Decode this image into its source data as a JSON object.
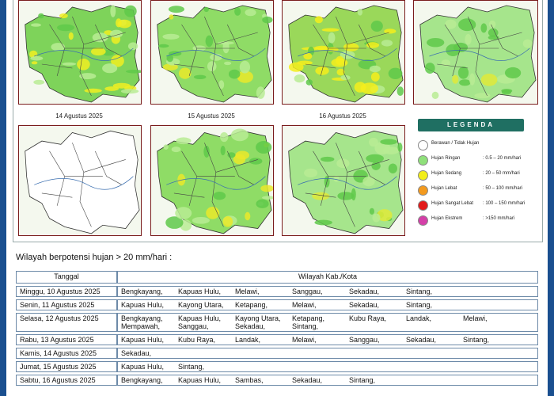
{
  "maps": [
    {
      "date": "",
      "variant": "heavy"
    },
    {
      "date": "",
      "variant": "medium"
    },
    {
      "date": "",
      "variant": "heavy-yellow"
    },
    {
      "date": "",
      "variant": "medium-light"
    },
    {
      "date": "14 Agustus 2025",
      "variant": "empty"
    },
    {
      "date": "15 Agustus 2025",
      "variant": "medium"
    },
    {
      "date": "16 Agustus 2025",
      "variant": "medium-light"
    }
  ],
  "legend": {
    "title": "LEGENDA",
    "items": [
      {
        "name": "Berawan / Tidak Hujan",
        "range": "",
        "color": "#ffffff"
      },
      {
        "name": "Hujan Ringan",
        "range": ": 0.5 – 20 mm/hari",
        "color": "#8fe07a"
      },
      {
        "name": "Hujan Sedang",
        "range": ": 20 – 50 mm/hari",
        "color": "#f2ee1a"
      },
      {
        "name": "Hujan Lebat",
        "range": ": 50 – 100 mm/hari",
        "color": "#f39a1e"
      },
      {
        "name": "Hujan Sangat Lebat",
        "range": ": 100 – 150 mm/hari",
        "color": "#e21a1a"
      },
      {
        "name": "Hujan Ekstrem",
        "range": ": >150 mm/hari",
        "color": "#d43fa8"
      }
    ]
  },
  "caption": "Wilayah berpotensi hujan > 20 mm/hari :",
  "table": {
    "headers": [
      "Tanggal",
      "Wilayah Kab./Kota"
    ],
    "rows": [
      {
        "date": "Minggu, 10 Agustus 2025",
        "areas": [
          "Bengkayang,",
          "Kapuas Hulu,",
          "Melawi,",
          "Sanggau,",
          "Sekadau,",
          "Sintang,"
        ]
      },
      {
        "date": "Senin, 11 Agustus 2025",
        "areas": [
          "Kapuas Hulu,",
          "Kayong Utara,",
          "Ketapang,",
          "Melawi,",
          "Sekadau,",
          "Sintang,"
        ]
      },
      {
        "date": "Selasa, 12 Agustus 2025",
        "areas": [
          "Bengkayang,",
          "Kapuas Hulu,",
          "Kayong Utara,",
          "Ketapang,",
          "Kubu Raya,",
          "Landak,",
          "Melawi,",
          "Mempawah,",
          "Sanggau,",
          "Sekadau,",
          "Sintang,"
        ]
      },
      {
        "date": "Rabu, 13 Agustus 2025",
        "areas": [
          "Kapuas Hulu,",
          "Kubu Raya,",
          "Landak,",
          "Melawi,",
          "Sanggau,",
          "Sekadau,",
          "Sintang,"
        ]
      },
      {
        "date": "Kamis, 14 Agustus 2025",
        "areas": [
          "Sekadau,"
        ]
      },
      {
        "date": "Jumat, 15 Agustus 2025",
        "areas": [
          "Kapuas Hulu,",
          "Sintang,"
        ]
      },
      {
        "date": "Sabtu, 16 Agustus 2025",
        "areas": [
          "Bengkayang,",
          "Kapuas Hulu,",
          "Sambas,",
          "Sekadau,",
          "Sintang,"
        ]
      }
    ]
  }
}
